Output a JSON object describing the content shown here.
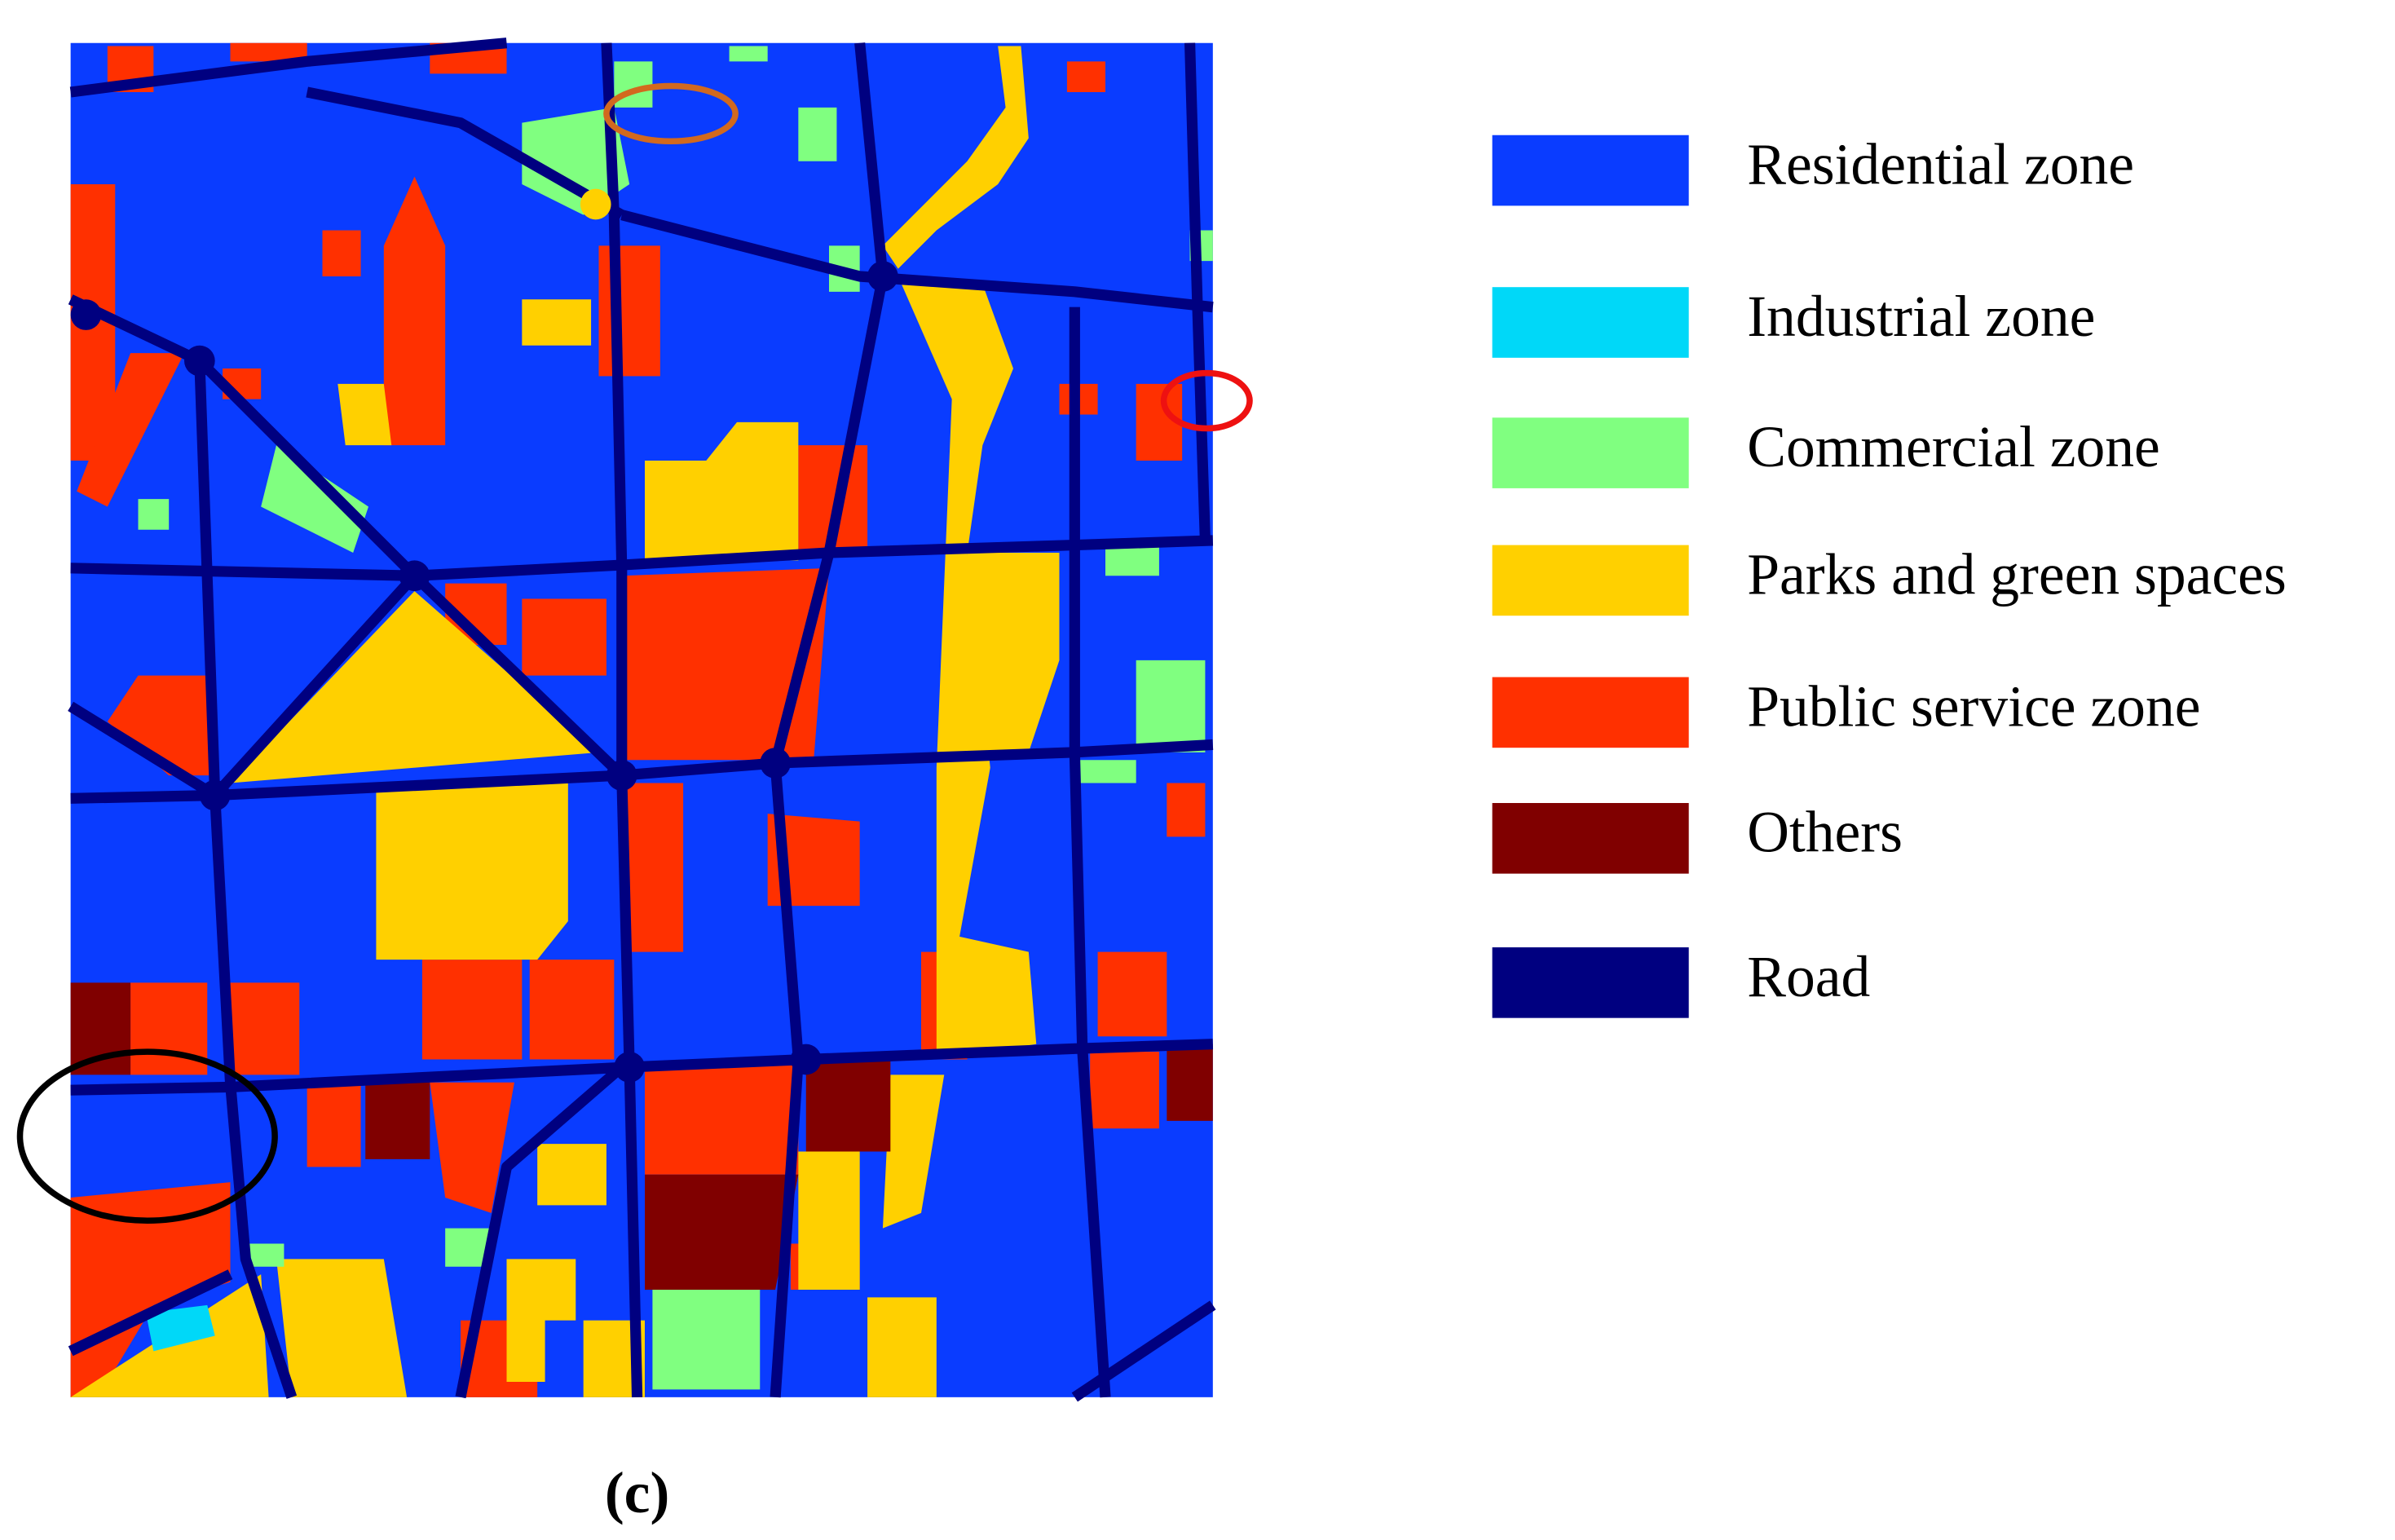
{
  "legend": {
    "items": [
      {
        "label": "Residential zone",
        "color": "#0a3cff"
      },
      {
        "label": "Industrial zone",
        "color": "#00d8f8"
      },
      {
        "label": "Commercial zone",
        "color": "#80ff80"
      },
      {
        "label": "Parks and green spaces",
        "color": "#ffd000"
      },
      {
        "label": "Public service zone",
        "color": "#ff3000"
      },
      {
        "label": "Others",
        "color": "#800000"
      },
      {
        "label": "Road",
        "color": "#000080"
      }
    ]
  },
  "caption": "(c)"
}
